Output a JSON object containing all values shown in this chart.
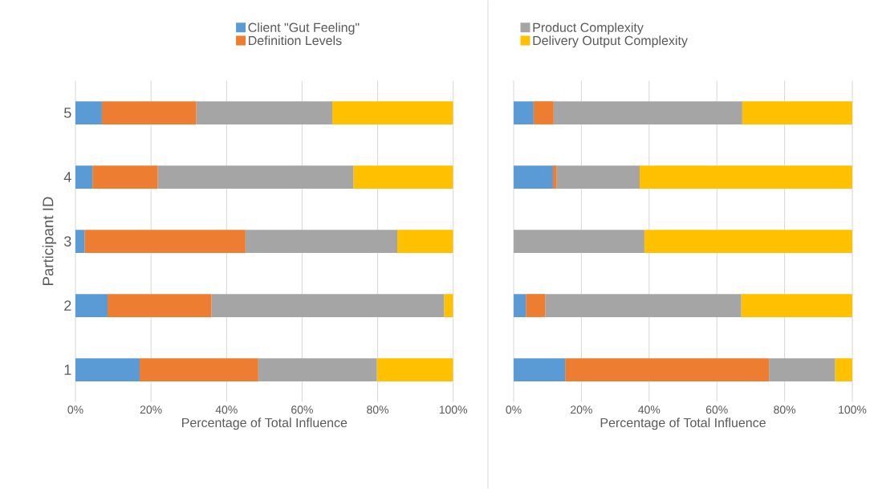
{
  "chart_data": [
    {
      "type": "bar",
      "orientation": "horizontal",
      "stacked": true,
      "categories": [
        "5",
        "4",
        "3",
        "2",
        "1"
      ],
      "series": [
        {
          "name": "Client \"Gut Feeling\"",
          "color": "#5b9bd5",
          "values": [
            7,
            4.5,
            2.4,
            8.5,
            17
          ]
        },
        {
          "name": "Definition Levels",
          "color": "#ed7d31",
          "values": [
            25,
            17.3,
            42.6,
            27.5,
            31.4
          ]
        },
        {
          "color": "#a5a5a5",
          "values": [
            36,
            51.8,
            40.2,
            61.6,
            31.4
          ]
        },
        {
          "color": "#ffc000",
          "values": [
            32,
            26.4,
            14.8,
            2.4,
            20.2
          ]
        }
      ],
      "xlim": [
        0,
        100
      ],
      "xticks": [
        {
          "value": 0,
          "label": "0%"
        },
        {
          "value": 20,
          "label": "20%"
        },
        {
          "value": 40,
          "label": "40%"
        },
        {
          "value": 60,
          "label": "60%"
        },
        {
          "value": 80,
          "label": "80%"
        },
        {
          "value": 100,
          "label": "100%"
        }
      ],
      "xlabel": "Percentage of Total Influence",
      "ylabel": "Participant ID",
      "grid": "x",
      "legend": "top"
    },
    {
      "type": "bar",
      "orientation": "horizontal",
      "stacked": true,
      "categories": [
        "5",
        "4",
        "3",
        "2",
        "1"
      ],
      "series": [
        {
          "color": "#5b9bd5",
          "values": [
            5.9,
            11.6,
            0,
            3.6,
            15.2
          ]
        },
        {
          "color": "#ed7d31",
          "values": [
            5.9,
            1.1,
            0,
            5.7,
            60.2
          ]
        },
        {
          "name": "Product Complexity",
          "color": "#a5a5a5",
          "values": [
            55.7,
            24.5,
            38.6,
            57.9,
            19.5
          ]
        },
        {
          "name": "Delivery Output Complexity",
          "color": "#ffc000",
          "values": [
            32.5,
            62.8,
            61.4,
            32.8,
            5.1
          ]
        }
      ],
      "xlim": [
        0,
        100
      ],
      "xticks": [
        {
          "value": 0,
          "label": "0%"
        },
        {
          "value": 20,
          "label": "20%"
        },
        {
          "value": 40,
          "label": "40%"
        },
        {
          "value": 60,
          "label": "60%"
        },
        {
          "value": 80,
          "label": "80%"
        },
        {
          "value": 100,
          "label": "100%"
        }
      ],
      "xlabel": "Percentage of Total Influence",
      "grid": "x",
      "legend": "top",
      "tick_labels": "x"
    }
  ]
}
